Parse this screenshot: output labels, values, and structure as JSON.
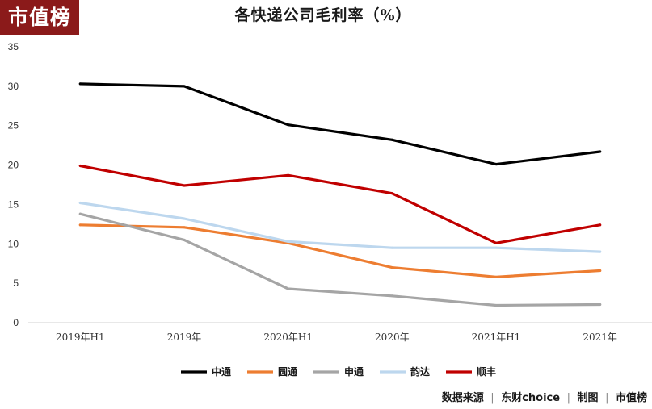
{
  "brand": {
    "logo_text": "市值榜"
  },
  "chart_data": {
    "type": "line",
    "title": "各快递公司毛利率（%）",
    "categories": [
      "2019年H1",
      "2019年",
      "2020年H1",
      "2020年",
      "2021年H1",
      "2021年"
    ],
    "ylim": [
      0,
      35
    ],
    "yticks": [
      0,
      5,
      10,
      15,
      20,
      25,
      30,
      35
    ],
    "grid": false,
    "legend_position": "bottom",
    "series": [
      {
        "name": "中通",
        "color": "#000000",
        "values": [
          30.3,
          30.0,
          25.1,
          23.2,
          20.1,
          21.7
        ]
      },
      {
        "name": "圆通",
        "color": "#ed7d31",
        "values": [
          12.4,
          12.1,
          10.1,
          7.0,
          5.8,
          6.6
        ]
      },
      {
        "name": "申通",
        "color": "#a5a5a5",
        "values": [
          13.8,
          10.5,
          4.3,
          3.4,
          2.2,
          2.3
        ]
      },
      {
        "name": "韵达",
        "color": "#bdd7ee",
        "values": [
          15.2,
          13.2,
          10.3,
          9.5,
          9.5,
          9.0
        ]
      },
      {
        "name": "顺丰",
        "color": "#c00000",
        "values": [
          19.9,
          17.4,
          18.7,
          16.4,
          10.1,
          12.4
        ]
      }
    ]
  },
  "footer": {
    "source_label": "数据来源",
    "source_value": "东财choice",
    "credit_label": "制图",
    "credit_value": "市值榜"
  }
}
